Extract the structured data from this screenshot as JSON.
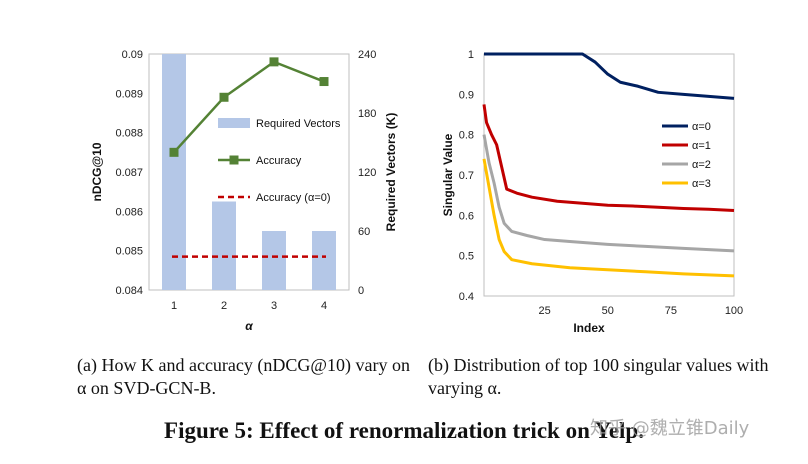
{
  "chart_data": [
    {
      "type": "bar+line",
      "panel_caption": "(a) How K and accuracy (nDCG@10) vary on α on SVD-GCN-B.",
      "xlabel": "α",
      "ylabel_left": "nDCG@10",
      "ylabel_right": "Required Vectors (K)",
      "categories": [
        "1",
        "2",
        "3",
        "4"
      ],
      "ylim_left": [
        0.084,
        0.09
      ],
      "yticks_left": [
        "0.084",
        "0.085",
        "0.086",
        "0.087",
        "0.088",
        "0.089",
        "0.09"
      ],
      "ylim_right": [
        0,
        240
      ],
      "yticks_right": [
        "0",
        "60",
        "120",
        "180",
        "240"
      ],
      "legend_placement": "center-right",
      "series": [
        {
          "name": "Required Vectors",
          "kind": "bar",
          "axis": "right",
          "color": "#b4c7e7",
          "values": [
            240,
            90,
            60,
            60
          ]
        },
        {
          "name": "Accuracy",
          "kind": "line-marker",
          "axis": "left",
          "color": "#548235",
          "values": [
            0.0875,
            0.0889,
            0.0898,
            0.0893
          ]
        },
        {
          "name": "Accuracy (α=0)",
          "kind": "dashed-line",
          "axis": "left",
          "color": "#c00000",
          "values": [
            0.08485,
            0.08485,
            0.08485,
            0.08485
          ]
        }
      ]
    },
    {
      "type": "line",
      "panel_caption": "(b) Distribution of top 100 singular values with varying α.",
      "xlabel": "Index",
      "ylabel": "Singular Value",
      "xlim": [
        1,
        100
      ],
      "xticks": [
        "25",
        "50",
        "75",
        "100"
      ],
      "ylim": [
        0.4,
        1.0
      ],
      "yticks": [
        "0.4",
        "0.5",
        "0.6",
        "0.7",
        "0.8",
        "0.9",
        "1"
      ],
      "legend_placement": "right",
      "series": [
        {
          "name": "α=0",
          "color": "#002060",
          "points": [
            [
              1,
              1.0
            ],
            [
              40,
              1.0
            ],
            [
              45,
              0.98
            ],
            [
              50,
              0.95
            ],
            [
              55,
              0.93
            ],
            [
              62,
              0.92
            ],
            [
              70,
              0.905
            ],
            [
              80,
              0.9
            ],
            [
              90,
              0.895
            ],
            [
              100,
              0.89
            ]
          ]
        },
        {
          "name": "α=1",
          "color": "#c00000",
          "points": [
            [
              1,
              0.875
            ],
            [
              2,
              0.83
            ],
            [
              4,
              0.8
            ],
            [
              6,
              0.775
            ],
            [
              8,
              0.72
            ],
            [
              10,
              0.665
            ],
            [
              14,
              0.655
            ],
            [
              20,
              0.645
            ],
            [
              30,
              0.635
            ],
            [
              40,
              0.63
            ],
            [
              50,
              0.625
            ],
            [
              60,
              0.623
            ],
            [
              70,
              0.62
            ],
            [
              80,
              0.617
            ],
            [
              90,
              0.615
            ],
            [
              100,
              0.612
            ]
          ]
        },
        {
          "name": "α=2",
          "color": "#a6a6a6",
          "points": [
            [
              1,
              0.8
            ],
            [
              3,
              0.73
            ],
            [
              5,
              0.68
            ],
            [
              7,
              0.62
            ],
            [
              9,
              0.58
            ],
            [
              12,
              0.56
            ],
            [
              18,
              0.55
            ],
            [
              25,
              0.54
            ],
            [
              35,
              0.535
            ],
            [
              50,
              0.528
            ],
            [
              65,
              0.523
            ],
            [
              80,
              0.518
            ],
            [
              100,
              0.512
            ]
          ]
        },
        {
          "name": "α=3",
          "color": "#ffc000",
          "points": [
            [
              1,
              0.74
            ],
            [
              3,
              0.67
            ],
            [
              5,
              0.6
            ],
            [
              7,
              0.54
            ],
            [
              9,
              0.51
            ],
            [
              12,
              0.49
            ],
            [
              20,
              0.48
            ],
            [
              35,
              0.47
            ],
            [
              50,
              0.465
            ],
            [
              65,
              0.46
            ],
            [
              80,
              0.455
            ],
            [
              100,
              0.45
            ]
          ]
        }
      ]
    }
  ],
  "figure_title": "Figure 5: Effect of renormalization trick on Yelp.",
  "watermark": "知乎 @魏立锥Daily"
}
